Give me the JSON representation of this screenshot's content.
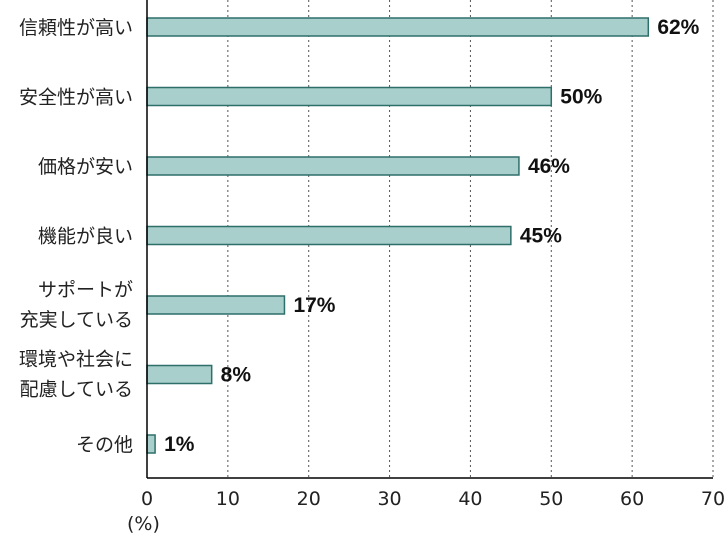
{
  "chart_data": {
    "type": "bar",
    "orientation": "horizontal",
    "categories": [
      [
        "信頼性が高い"
      ],
      [
        "安全性が高い"
      ],
      [
        "価格が安い"
      ],
      [
        "機能が良い"
      ],
      [
        "サポートが",
        "充実している"
      ],
      [
        "環境や社会に",
        "配慮している"
      ],
      [
        "その他"
      ]
    ],
    "values": [
      62,
      50,
      46,
      45,
      17,
      8,
      1
    ],
    "value_labels": [
      "62%",
      "50%",
      "46%",
      "45%",
      "17%",
      "8%",
      "1%"
    ],
    "xlim": [
      0,
      70
    ],
    "xticks": [
      0,
      10,
      20,
      30,
      40,
      50,
      60,
      70
    ],
    "tick_labels": [
      "0",
      "10",
      "20",
      "30",
      "40",
      "50",
      "60",
      "70"
    ],
    "unit_label": "(%)",
    "grid": "vertical dotted",
    "bar_fill": "#a8cfcb",
    "bar_stroke": "#2f6f6a"
  }
}
